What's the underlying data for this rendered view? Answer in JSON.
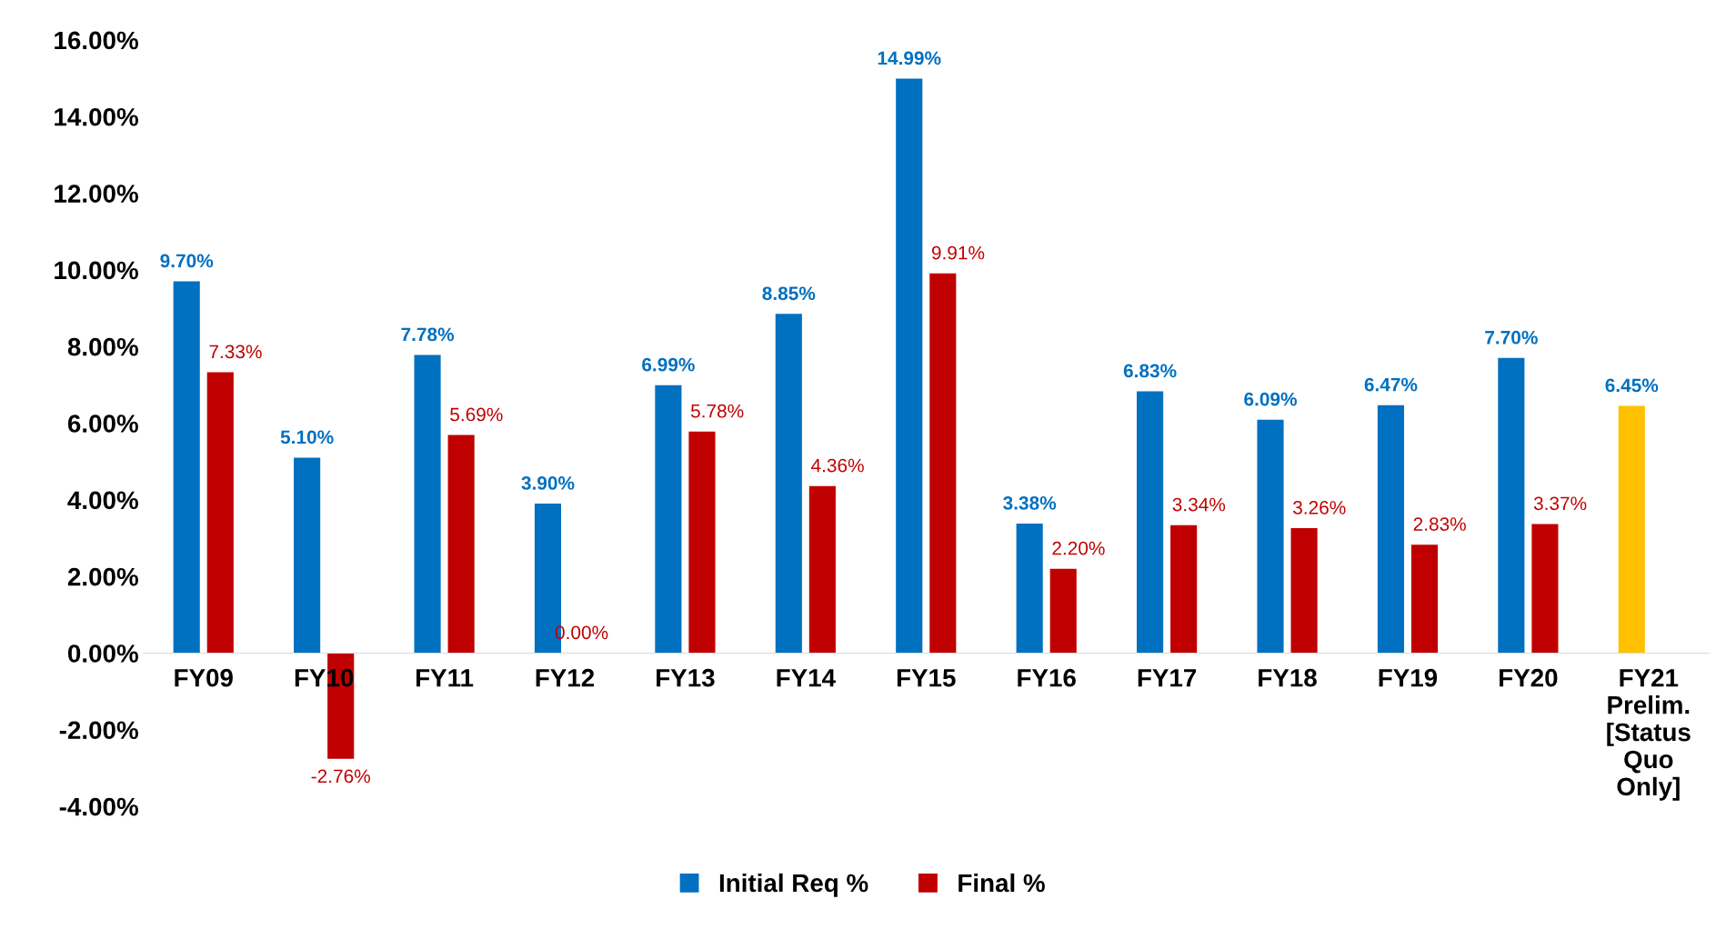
{
  "chart_data": {
    "type": "bar",
    "categories": [
      "FY09",
      "FY10",
      "FY11",
      "FY12",
      "FY13",
      "FY14",
      "FY15",
      "FY16",
      "FY17",
      "FY18",
      "FY19",
      "FY20",
      "FY21\nPrelim.\n[Status\nQuo\nOnly]"
    ],
    "series": [
      {
        "name": "Initial Req %",
        "color": "#0070c0",
        "colors": [
          "#0070c0",
          "#0070c0",
          "#0070c0",
          "#0070c0",
          "#0070c0",
          "#0070c0",
          "#0070c0",
          "#0070c0",
          "#0070c0",
          "#0070c0",
          "#0070c0",
          "#0070c0",
          "#ffc000"
        ],
        "values": [
          9.7,
          5.1,
          7.78,
          3.9,
          6.99,
          8.85,
          14.99,
          3.38,
          6.83,
          6.09,
          6.47,
          7.7,
          6.45
        ],
        "value_labels": [
          "9.70%",
          "5.10%",
          "7.78%",
          "3.90%",
          "6.99%",
          "8.85%",
          "14.99%",
          "3.38%",
          "6.83%",
          "6.09%",
          "6.47%",
          "7.70%",
          "6.45%"
        ]
      },
      {
        "name": "Final %",
        "color": "#c00000",
        "values": [
          7.33,
          -2.76,
          5.69,
          0.0,
          5.78,
          4.36,
          9.91,
          2.2,
          3.34,
          3.26,
          2.83,
          3.37,
          null
        ],
        "value_labels": [
          "7.33%",
          "-2.76%",
          "5.69%",
          "0.00%",
          "5.78%",
          "4.36%",
          "9.91%",
          "2.20%",
          "3.34%",
          "3.26%",
          "2.83%",
          "3.37%",
          null
        ]
      }
    ],
    "ylim": [
      -4,
      16
    ],
    "yticks": [
      {
        "value": -4,
        "label": "-4.00%"
      },
      {
        "value": -2,
        "label": "-2.00%"
      },
      {
        "value": 0,
        "label": "0.00%"
      },
      {
        "value": 2,
        "label": "2.00%"
      },
      {
        "value": 4,
        "label": "4.00%"
      },
      {
        "value": 6,
        "label": "6.00%"
      },
      {
        "value": 8,
        "label": "8.00%"
      },
      {
        "value": 10,
        "label": "10.00%"
      },
      {
        "value": 12,
        "label": "12.00%"
      },
      {
        "value": 14,
        "label": "14.00%"
      },
      {
        "value": 16,
        "label": "16.00%"
      }
    ],
    "grid": false,
    "legend": "bottom"
  }
}
